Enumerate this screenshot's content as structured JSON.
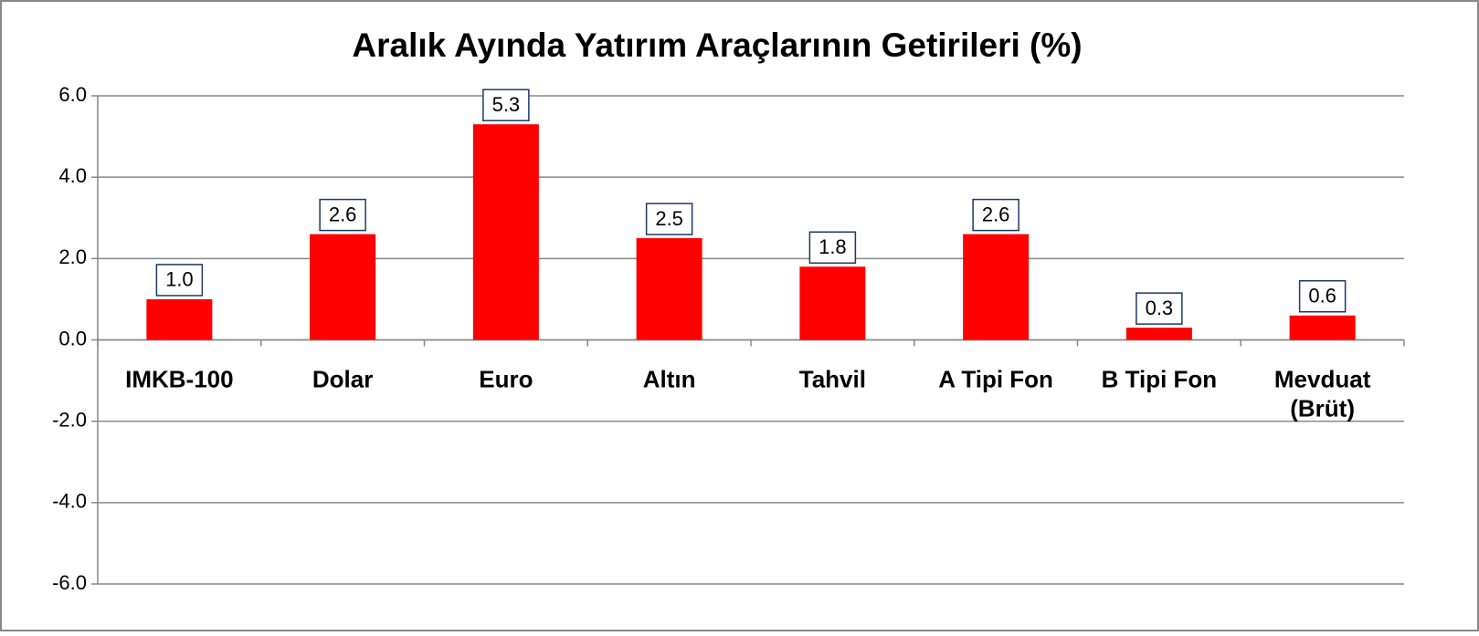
{
  "chart_data": {
    "type": "bar",
    "title": "Aralık Ayında Yatırım Araçlarının Getirileri (%)",
    "categories": [
      "IMKB-100",
      "Dolar",
      "Euro",
      "Altın",
      "Tahvil",
      "A Tipi Fon",
      "B Tipi Fon",
      "Mevduat (Brüt)"
    ],
    "values": [
      1.0,
      2.6,
      5.3,
      2.5,
      1.8,
      2.6,
      0.3,
      0.6
    ],
    "value_labels": [
      "1.0",
      "2.6",
      "5.3",
      "2.5",
      "1.8",
      "2.6",
      "0.3",
      "0.6"
    ],
    "color": "#ff0000",
    "ylim": [
      -6,
      6
    ],
    "yticks": [
      {
        "value": -6,
        "label": "-6.0"
      },
      {
        "value": -4,
        "label": "-4.0"
      },
      {
        "value": -2,
        "label": "-2.0"
      },
      {
        "value": 0,
        "label": "0.0"
      },
      {
        "value": 2,
        "label": "2.0"
      },
      {
        "value": 4,
        "label": "4.0"
      },
      {
        "value": 6,
        "label": "6.0"
      }
    ],
    "grid": true
  }
}
